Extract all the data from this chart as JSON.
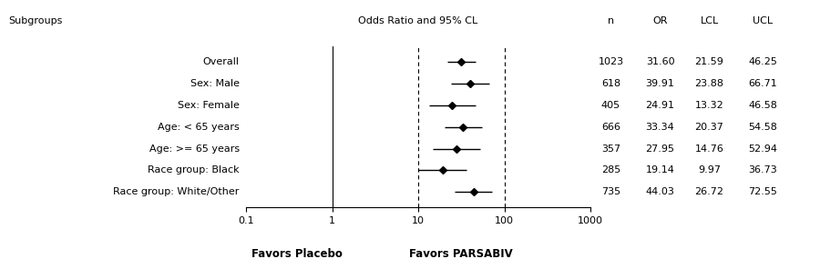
{
  "subgroups": [
    "Overall",
    "Sex: Male",
    "Sex: Female",
    "Age: < 65 years",
    "Age: >= 65 years",
    "Race group: Black",
    "Race group: White/Other"
  ],
  "or_values": [
    31.6,
    39.91,
    24.91,
    33.34,
    27.95,
    19.14,
    44.03
  ],
  "lcl_values": [
    21.59,
    23.88,
    13.32,
    20.37,
    14.76,
    9.97,
    26.72
  ],
  "ucl_values": [
    46.25,
    66.71,
    46.58,
    54.58,
    52.94,
    36.73,
    72.55
  ],
  "n_labels": [
    "1023",
    "618",
    "405",
    "666",
    "357",
    "285",
    "735"
  ],
  "or_labels": [
    "31.60",
    "39.91",
    "24.91",
    "33.34",
    "27.95",
    "19.14",
    "44.03"
  ],
  "lcl_labels": [
    "21.59",
    "23.88",
    "13.32",
    "20.37",
    "14.76",
    "9.97",
    "26.72"
  ],
  "ucl_labels": [
    "46.25",
    "66.71",
    "46.58",
    "54.58",
    "52.94",
    "36.73",
    "72.55"
  ],
  "col_headers": [
    "n",
    "OR",
    "LCL",
    "UCL"
  ],
  "title_left": "Subgroups",
  "title_center": "Odds Ratio and 95% CL",
  "xmin": 0.1,
  "xmax": 1000,
  "vline_solid": 1.0,
  "vlines_dashed": [
    10,
    100
  ],
  "xticks": [
    0.1,
    1,
    10,
    100,
    1000
  ],
  "xtick_labels": [
    "0.1",
    "1",
    "10",
    "100",
    "1000"
  ],
  "xlabel_left": "Favors Placebo",
  "xlabel_right": "Favors PARSABIV",
  "bg_color": "#ffffff",
  "text_color": "#000000",
  "marker_color": "#000000",
  "font_size": 8.0
}
